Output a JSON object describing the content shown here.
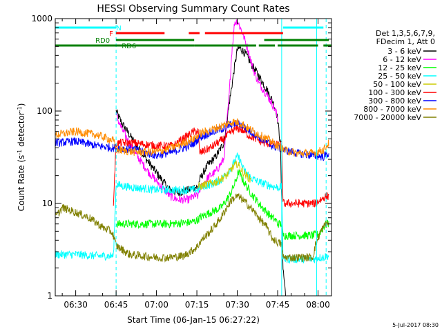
{
  "chart_data": {
    "type": "line",
    "title": "HESSI Observing Summary Count Rates",
    "xlabel": "Start Time (06-Jan-15 06:27:22)",
    "ylabel_main": "Count Rate (s",
    "ylabel_sup1": "-1",
    "ylabel_mid": " detector",
    "ylabel_sup2": "-1",
    "ylabel_end": ")",
    "yscale": "log",
    "ylim": [
      1,
      1000
    ],
    "xlim_minutes": [
      22.4,
      125
    ],
    "x_unit": "minutes after 06:00 UT",
    "xticks": [
      {
        "value": 30,
        "label": "06:30"
      },
      {
        "value": 45,
        "label": "06:45"
      },
      {
        "value": 60,
        "label": "07:00"
      },
      {
        "value": 75,
        "label": "07:15"
      },
      {
        "value": 90,
        "label": "07:30"
      },
      {
        "value": 105,
        "label": "07:45"
      },
      {
        "value": 120,
        "label": "08:00"
      }
    ],
    "yticks": [
      {
        "value": 1,
        "label": "1"
      },
      {
        "value": 10,
        "label": "10"
      },
      {
        "value": 100,
        "label": "100"
      },
      {
        "value": 1000,
        "label": "1000"
      }
    ],
    "legend": {
      "placement": "right",
      "header": [
        "Det 1,3,5,6,7,9,",
        "FDecim 1, Att 0"
      ]
    },
    "timestamp": "5-Jul-2017 08:30",
    "flags": [
      {
        "label": "N",
        "color": "#00ffff",
        "segments": [
          [
            22.4,
            45
          ],
          [
            107,
            122
          ]
        ]
      },
      {
        "label": "F",
        "color": "#ff0000",
        "segments": [
          [
            45,
            63
          ],
          [
            72,
            76
          ],
          [
            78,
            107
          ]
        ]
      },
      {
        "label": "RD0",
        "color": "#008000",
        "segments": [
          [
            45,
            74
          ],
          [
            100,
            124
          ]
        ]
      },
      {
        "label": "RD6",
        "color": "#008000",
        "segments": [
          [
            22.4,
            74
          ],
          [
            74,
            97
          ],
          [
            98,
            104
          ],
          [
            105,
            120
          ],
          [
            122,
            125
          ]
        ]
      }
    ],
    "vlines": [
      {
        "color": "#00ffff",
        "style": "dashed",
        "x": 45
      },
      {
        "color": "#00ffff",
        "style": "solid",
        "x": 106.5
      },
      {
        "color": "#00ffff",
        "style": "solid",
        "x": 119.5
      },
      {
        "color": "#00ffff",
        "style": "dashed",
        "x": 123
      }
    ],
    "series": [
      {
        "name": "3 - 6 keV",
        "color": "#000000",
        "x": [
          22.4,
          44,
          45,
          47,
          52,
          57,
          62,
          65,
          68,
          72,
          74,
          75.5,
          76,
          79,
          82,
          85,
          87,
          89,
          90,
          91,
          93,
          95,
          98,
          101,
          103,
          104.5,
          105,
          106,
          106.5,
          107,
          108
        ],
        "y": [
          null,
          null,
          100,
          75,
          45,
          28,
          18,
          14,
          13,
          14,
          15,
          15,
          18,
          26,
          32,
          45,
          120,
          300,
          460,
          480,
          420,
          330,
          240,
          170,
          130,
          100,
          80,
          45,
          10,
          2,
          1
        ]
      },
      {
        "name": "6 - 12 keV",
        "color": "#ff00ff",
        "x": [
          22.4,
          44,
          45,
          47,
          52,
          57,
          62,
          65,
          68,
          72,
          74,
          75.5,
          76,
          79,
          82,
          85,
          87,
          88,
          89,
          90,
          92,
          94,
          96,
          98,
          101,
          103,
          104.5,
          105
        ],
        "y": [
          null,
          null,
          90,
          65,
          35,
          22,
          15,
          12,
          11,
          11,
          12,
          12,
          14,
          19,
          22,
          30,
          150,
          450,
          900,
          950,
          700,
          460,
          280,
          200,
          150,
          120,
          95,
          80
        ]
      },
      {
        "name": "12 - 25 keV",
        "color": "#00ff00",
        "x": [
          22.4,
          44,
          45,
          55,
          65,
          72,
          75,
          76,
          80,
          84,
          87,
          89,
          90.5,
          92,
          95,
          98,
          101,
          103,
          104.5,
          105,
          106.5,
          107,
          118,
          119,
          120,
          121,
          122,
          123,
          124
        ],
        "y": [
          null,
          null,
          6,
          6,
          6,
          6.2,
          6.5,
          7,
          8,
          9,
          12,
          16,
          22,
          18,
          13,
          10,
          8,
          7,
          6.5,
          6,
          6,
          4.5,
          4.5,
          4.6,
          4.6,
          5,
          5.5,
          6,
          6
        ]
      },
      {
        "name": "25 - 50 keV",
        "color": "#00ffff",
        "x": [
          22.4,
          30,
          38,
          44,
          45,
          50,
          60,
          70,
          74,
          75.5,
          76,
          80,
          84,
          88,
          90,
          91,
          92,
          95,
          98,
          101,
          104,
          105,
          106.5,
          107,
          118,
          119,
          120,
          121,
          122,
          123,
          124
        ],
        "y": [
          2.8,
          2.8,
          2.7,
          2.7,
          16,
          15,
          14,
          14,
          14,
          14,
          15,
          16,
          18,
          25,
          32,
          30,
          24,
          19,
          17,
          16,
          15,
          15,
          15,
          2.5,
          2.5,
          2.5,
          2.6,
          2.6,
          2.6,
          2.7,
          2.7
        ]
      },
      {
        "name": "50 - 100 keV",
        "color": "#cccc00",
        "x": [
          75.5,
          78,
          82,
          86,
          88,
          90,
          92,
          95
        ],
        "y": [
          15,
          16,
          17,
          20,
          24,
          27,
          22,
          18
        ]
      },
      {
        "name": "100 - 300 keV",
        "color": "#ff0000",
        "x": [
          22.4,
          30,
          38,
          43,
          44,
          45,
          52,
          60,
          66,
          72,
          74,
          75.5,
          76,
          80,
          85,
          88,
          90,
          92,
          94,
          97,
          100,
          103,
          104.5,
          105,
          106.5,
          107,
          118,
          119,
          120,
          121,
          122,
          123,
          124
        ],
        "y": [
          null,
          null,
          null,
          null,
          10,
          45,
          45,
          42,
          42,
          55,
          60,
          60,
          35,
          40,
          50,
          60,
          65,
          62,
          55,
          50,
          45,
          44,
          43,
          43,
          43,
          10,
          10,
          10,
          10.5,
          11,
          11.5,
          12,
          12
        ]
      },
      {
        "name": "300 - 800 keV",
        "color": "#0000ff",
        "x": [
          22.4,
          30,
          38,
          44,
          45,
          52,
          60,
          66,
          72,
          74,
          75.5,
          76,
          80,
          85,
          88,
          90,
          92,
          94,
          97,
          100,
          103,
          105,
          106.5,
          107,
          112,
          118,
          122,
          124
        ],
        "y": [
          45,
          47,
          42,
          40,
          40,
          38,
          33,
          36,
          42,
          45,
          50,
          52,
          58,
          65,
          72,
          74,
          70,
          62,
          55,
          48,
          42,
          40,
          39,
          38,
          35,
          33,
          32,
          35
        ]
      },
      {
        "name": "800 - 7000 keV",
        "color": "#ff8c00",
        "x": [
          22.4,
          30,
          38,
          44,
          45,
          52,
          60,
          66,
          72,
          74,
          75.5,
          76,
          80,
          85,
          88,
          90,
          92,
          94,
          97,
          100,
          103,
          105,
          106.5,
          107,
          112,
          118,
          122,
          124
        ],
        "y": [
          55,
          60,
          55,
          48,
          38,
          36,
          36,
          40,
          48,
          50,
          55,
          57,
          62,
          70,
          76,
          76,
          72,
          65,
          58,
          52,
          46,
          42,
          40,
          38,
          35,
          35,
          38,
          45
        ]
      },
      {
        "name": "7000 - 20000 keV",
        "color": "#808000",
        "x": [
          22.4,
          25,
          30,
          35,
          40,
          43,
          44,
          45,
          50,
          55,
          60,
          65,
          70,
          74,
          75.5,
          76,
          80,
          84,
          86,
          88,
          90,
          92,
          95,
          98,
          101,
          103,
          105,
          106.5,
          107,
          118,
          119,
          120,
          121,
          122,
          123,
          124
        ],
        "y": [
          7,
          9,
          8,
          7,
          5.5,
          5,
          4.5,
          3.5,
          2.8,
          2.7,
          2.6,
          2.6,
          2.7,
          3.2,
          3.5,
          3.8,
          5,
          7,
          9,
          11,
          12,
          11,
          9,
          7,
          5.5,
          4.2,
          3.8,
          3.6,
          2.6,
          2.6,
          3.5,
          4.2,
          5,
          5.5,
          6,
          6
        ]
      }
    ]
  }
}
